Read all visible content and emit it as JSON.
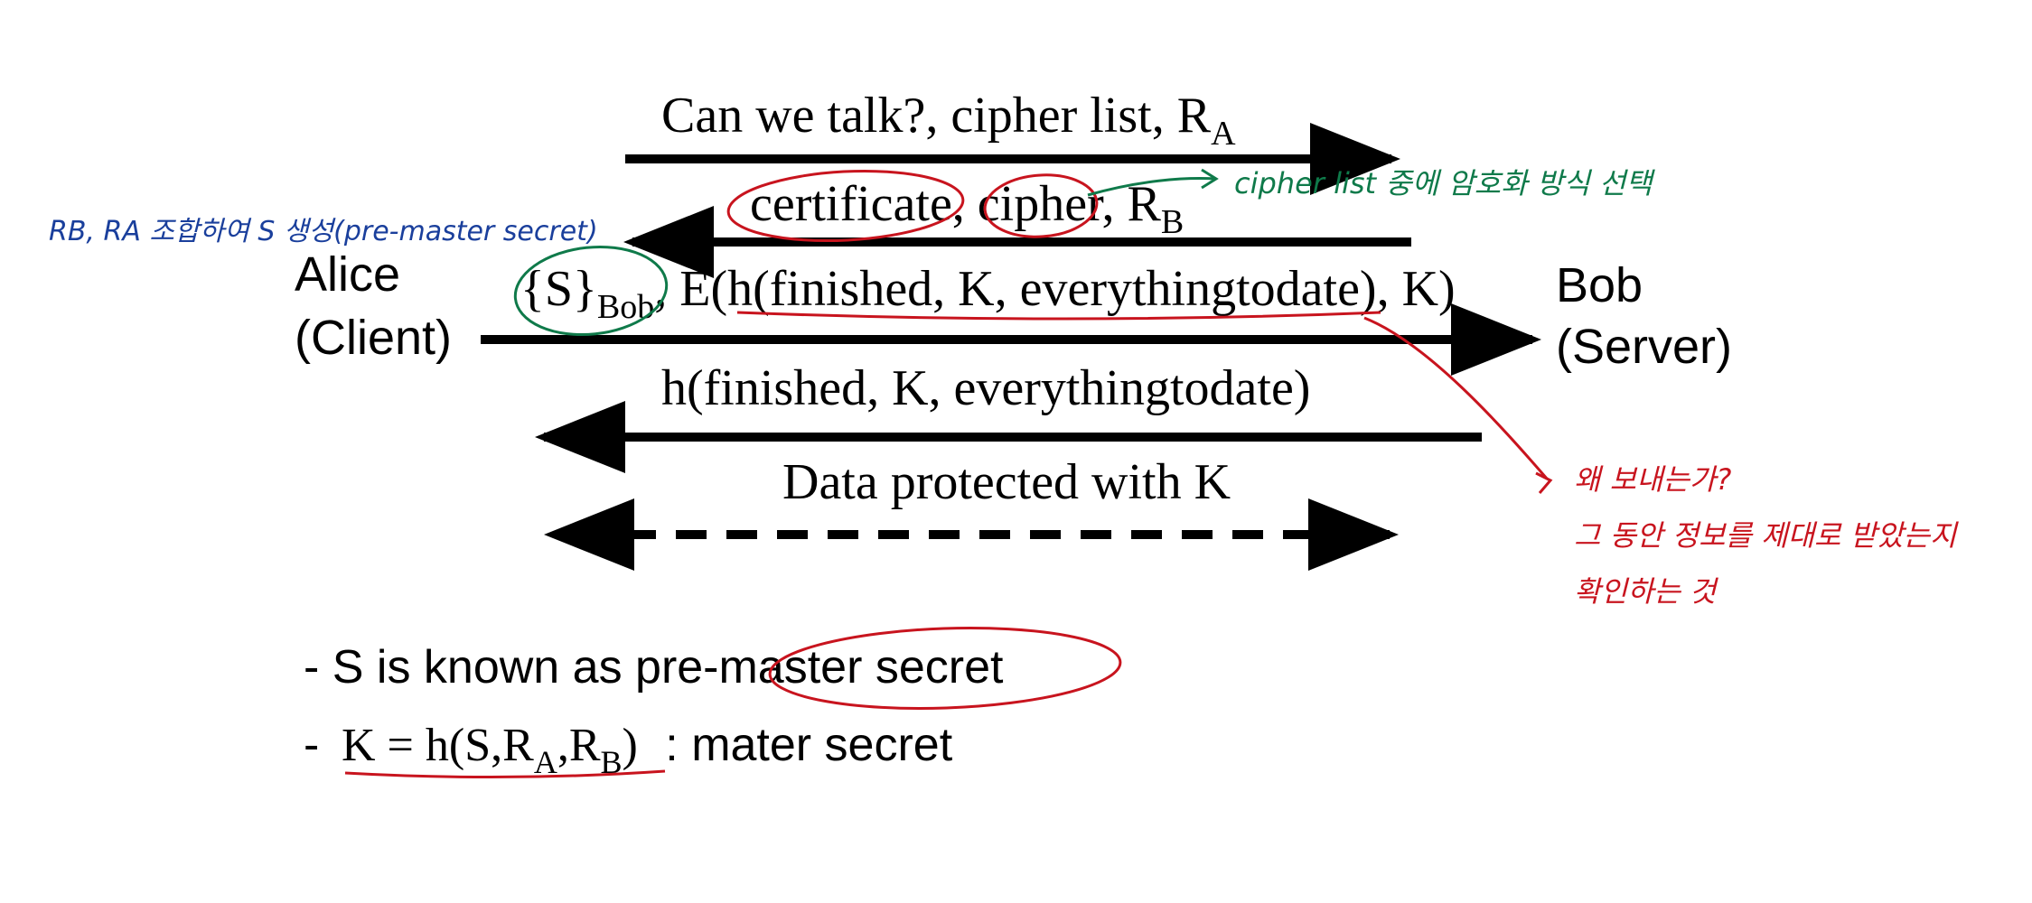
{
  "colors": {
    "ink": "#000000",
    "annotation_red": "#c8141e",
    "annotation_green": "#0f7a4a",
    "annotation_blue": "#1a3f9c"
  },
  "parties": {
    "alice_name": "Alice",
    "alice_role": "(Client)",
    "bob_name": "Bob",
    "bob_role": "(Server)"
  },
  "messages": {
    "m1": {
      "text": "Can we talk?, cipher list, R",
      "sub": "A"
    },
    "m2": {
      "part_a": "certificate, cipher, R",
      "sub": "B"
    },
    "m3": {
      "s_open": "{S}",
      "s_sub": "Bob",
      "rest": ", E(h(finished, K, everythingtodate), K)"
    },
    "m4": {
      "text": "h(finished, K, everythingtodate)"
    },
    "m5": {
      "text": "Data protected with K"
    }
  },
  "notes": {
    "line1": "- S is known as pre-master secret",
    "line2_prefix": "-",
    "line2_formula_a": "K = h(S,R",
    "line2_sub_a": "A",
    "line2_comma": ",R",
    "line2_sub_b": "B",
    "line2_formula_close": ")",
    "line2_suffix": ": mater secret"
  },
  "handwritten": {
    "blue_note": "RB, RA 조합하여  S 생성(pre-master secret)",
    "green_note": "cipher list 중에 암호화 방식 선택",
    "red_note_1": "왜 보내는가?",
    "red_note_2": "그 동안 정보를 제대로 받았는지",
    "red_note_3": "확인하는 것"
  }
}
